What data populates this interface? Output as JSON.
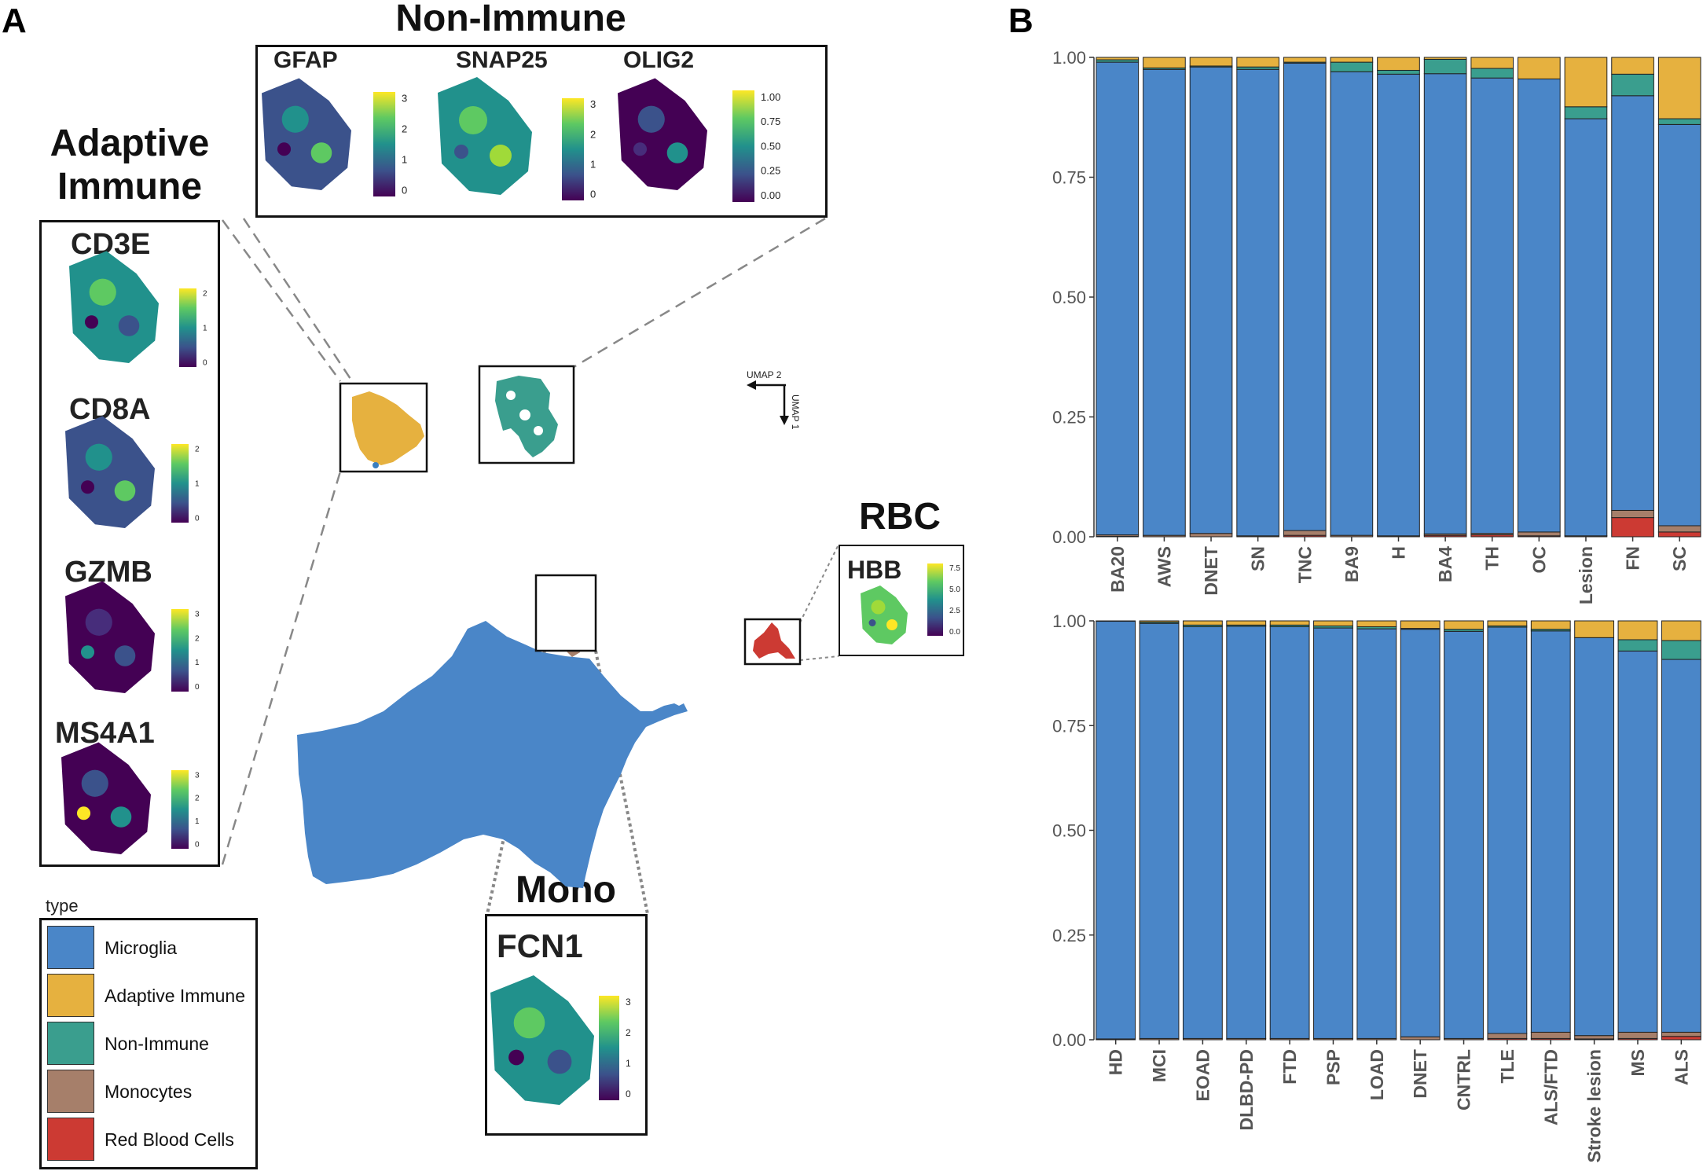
{
  "panel_a": {
    "letter": "A",
    "non_immune_title": "Non-Immune",
    "adaptive_title_line1": "Adaptive",
    "adaptive_title_line2": "Immune",
    "rbc_title": "RBC",
    "mono_title": "Mono",
    "umap_x_label": "UMAP 2",
    "umap_y_label": "UMAP 1",
    "genes": {
      "gfap": {
        "name": "GFAP",
        "ticks": [
          "3",
          "2",
          "1",
          "0"
        ]
      },
      "snap25": {
        "name": "SNAP25",
        "ticks": [
          "3",
          "2",
          "1",
          "0"
        ]
      },
      "olig2": {
        "name": "OLIG2",
        "ticks": [
          "1.00",
          "0.75",
          "0.50",
          "0.25",
          "0.00"
        ]
      },
      "cd3e": {
        "name": "CD3E",
        "ticks": [
          "2",
          "1",
          "0"
        ]
      },
      "cd8a": {
        "name": "CD8A",
        "ticks": [
          "2",
          "1",
          "0"
        ]
      },
      "gzmb": {
        "name": "GZMB",
        "ticks": [
          "3",
          "2",
          "1",
          "0"
        ]
      },
      "ms4a1": {
        "name": "MS4A1",
        "ticks": [
          "3",
          "2",
          "1",
          "0"
        ]
      },
      "hbb": {
        "name": "HBB",
        "ticks": [
          "7.5",
          "5.0",
          "2.5",
          "0.0"
        ]
      },
      "fcn1": {
        "name": "FCN1",
        "ticks": [
          "3",
          "2",
          "1",
          "0"
        ]
      }
    },
    "legend": {
      "title": "type",
      "items": [
        {
          "label": "Microglia",
          "color": "#4a86c8"
        },
        {
          "label": "Adaptive Immune",
          "color": "#e6b13f"
        },
        {
          "label": "Non-Immune",
          "color": "#3a9e8e"
        },
        {
          "label": "Monocytes",
          "color": "#a67f6a"
        },
        {
          "label": "Red Blood Cells",
          "color": "#cc3a33"
        }
      ]
    }
  },
  "panel_b": {
    "letter": "B"
  },
  "colors": {
    "microglia": "#4a86c8",
    "adaptive": "#e6b13f",
    "nonimmune": "#3a9e8e",
    "monocytes": "#a67f6a",
    "rbc": "#cc3a33"
  },
  "chart_data": [
    {
      "type": "bar",
      "stacked": true,
      "title": "",
      "xlabel": "",
      "ylabel": "",
      "ylim": [
        0,
        1
      ],
      "yticks": [
        "0.00",
        "0.25",
        "0.50",
        "0.75",
        "1.00"
      ],
      "categories": [
        "BA20",
        "AWS",
        "DNET",
        "SN",
        "TNC",
        "BA9",
        "H",
        "BA4",
        "TH",
        "OC",
        "Lesion",
        "FN",
        "SC"
      ],
      "series": [
        {
          "name": "Red Blood Cells",
          "values": [
            0.001,
            0.0,
            0.0,
            0.0,
            0.003,
            0.0,
            0.0,
            0.003,
            0.004,
            0.002,
            0.0,
            0.04,
            0.01
          ]
        },
        {
          "name": "Monocytes",
          "values": [
            0.003,
            0.003,
            0.007,
            0.002,
            0.01,
            0.003,
            0.002,
            0.003,
            0.003,
            0.008,
            0.002,
            0.015,
            0.013
          ]
        },
        {
          "name": "Microglia",
          "values": [
            0.986,
            0.972,
            0.973,
            0.973,
            0.975,
            0.967,
            0.963,
            0.96,
            0.95,
            0.945,
            0.87,
            0.865,
            0.837
          ]
        },
        {
          "name": "Non-Immune",
          "values": [
            0.005,
            0.003,
            0.002,
            0.005,
            0.002,
            0.02,
            0.008,
            0.03,
            0.02,
            0.0,
            0.025,
            0.045,
            0.012
          ]
        },
        {
          "name": "Adaptive Immune",
          "values": [
            0.005,
            0.022,
            0.018,
            0.02,
            0.01,
            0.01,
            0.027,
            0.004,
            0.023,
            0.045,
            0.103,
            0.035,
            0.128
          ]
        }
      ]
    },
    {
      "type": "bar",
      "stacked": true,
      "title": "",
      "xlabel": "",
      "ylabel": "",
      "ylim": [
        0,
        1
      ],
      "yticks": [
        "0.00",
        "0.25",
        "0.50",
        "0.75",
        "1.00"
      ],
      "categories": [
        "HD",
        "MCI",
        "EOAD",
        "DLBD-PD",
        "FTD",
        "PSP",
        "LOAD",
        "DNET",
        "CNTRL",
        "TLE",
        "ALS/FTD",
        "Stroke lesion",
        "MS",
        "ALS"
      ],
      "series": [
        {
          "name": "Red Blood Cells",
          "values": [
            0.0,
            0.0,
            0.0,
            0.0,
            0.0,
            0.0,
            0.0,
            0.0,
            0.0,
            0.003,
            0.003,
            0.002,
            0.003,
            0.008
          ]
        },
        {
          "name": "Monocytes",
          "values": [
            0.002,
            0.003,
            0.003,
            0.003,
            0.003,
            0.003,
            0.003,
            0.007,
            0.003,
            0.012,
            0.015,
            0.008,
            0.015,
            0.01
          ]
        },
        {
          "name": "Microglia",
          "values": [
            0.997,
            0.991,
            0.983,
            0.984,
            0.983,
            0.98,
            0.978,
            0.973,
            0.972,
            0.97,
            0.958,
            0.95,
            0.91,
            0.89
          ]
        },
        {
          "name": "Non-Immune",
          "values": [
            0.0,
            0.003,
            0.004,
            0.003,
            0.004,
            0.005,
            0.005,
            0.002,
            0.005,
            0.003,
            0.004,
            0.0,
            0.027,
            0.045
          ]
        },
        {
          "name": "Adaptive Immune",
          "values": [
            0.001,
            0.003,
            0.01,
            0.01,
            0.01,
            0.012,
            0.014,
            0.018,
            0.02,
            0.012,
            0.02,
            0.04,
            0.045,
            0.047
          ]
        }
      ]
    }
  ]
}
